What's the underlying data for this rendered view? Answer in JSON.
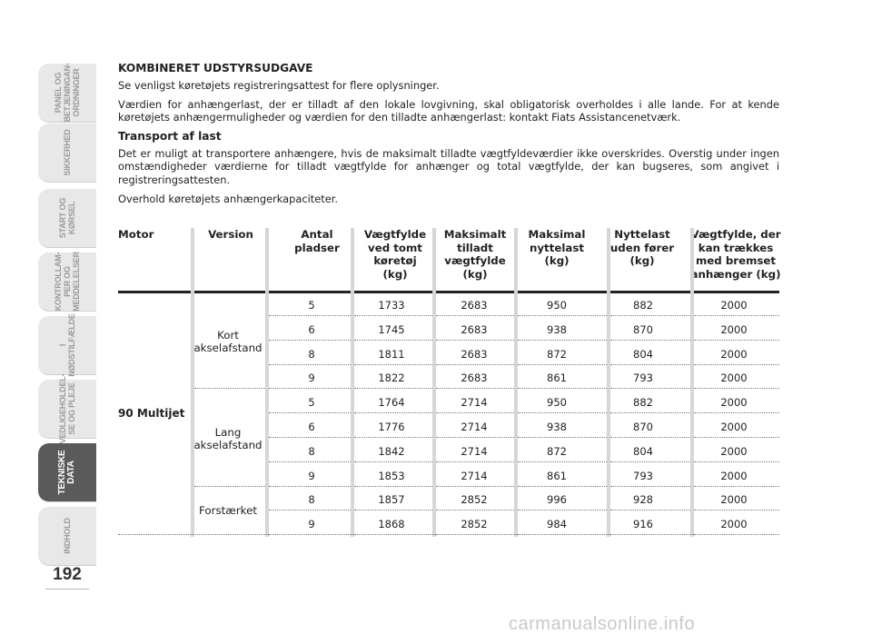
{
  "sidebar": {
    "tabs": [
      {
        "label": "PANEL OG\nBETJENINGAN-\nORDNINGER",
        "active": false
      },
      {
        "label": "SIKKERHED",
        "active": false
      },
      {
        "label": "START OG\nKØRSEL",
        "active": false
      },
      {
        "label": "KONTROLLAM-\nPER OG\nMEDDELELSER",
        "active": false
      },
      {
        "label": "I\nNØDSTILFÆLDE",
        "active": false
      },
      {
        "label": "VEDLIGEHOLDEL-\nSE OG PLEJE",
        "active": false
      },
      {
        "label": "TEKNISKE\nDATA",
        "active": true
      },
      {
        "label": "INDHOLD",
        "active": false
      }
    ],
    "page_number": "192"
  },
  "content": {
    "heading1": "KOMBINERET UDSTYRSUDGAVE",
    "p1": "Se venligst køretøjets registreringsattest for flere oplysninger.",
    "p2": "Værdien for anhængerlast, der er tilladt af den lokale lovgivning, skal obligatorisk overholdes i alle lande. For at kende køretøjets anhængermuligheder og værdien for den tilladte anhængerlast: kontakt Fiats Assistancenetværk.",
    "heading2": "Transport af last",
    "p3": "Det er muligt at transportere anhængere, hvis de maksimalt tilladte vægtfyldeværdier ikke overskrides. Overstig under ingen omstændigheder værdierne for tilladt vægtfylde for anhænger og total vægtfylde, der kan bugseres, som angivet i registreringsattesten.",
    "p4": "Overhold køretøjets anhængerkapaciteter."
  },
  "table": {
    "headers": [
      "Motor",
      "Version",
      "Antal\npladser",
      "Vægtfylde\nved tomt\nkøretøj\n(kg)",
      "Maksimalt\ntilladt\nvægtfylde\n(kg)",
      "Maksimal\nnyttelast\n(kg)",
      "Nyttelast\nuden fører\n(kg)",
      "Vægtfylde, der\nkan trækkes\nmed bremset\nanhænger (kg)"
    ],
    "motor": "90 Multijet",
    "versions": [
      "Kort\nakselafstand",
      "Lang\nakselafstand",
      "Forstærket"
    ],
    "rows": [
      [
        "5",
        "1733",
        "2683",
        "950",
        "882",
        "2000"
      ],
      [
        "6",
        "1745",
        "2683",
        "938",
        "870",
        "2000"
      ],
      [
        "8",
        "1811",
        "2683",
        "872",
        "804",
        "2000"
      ],
      [
        "9",
        "1822",
        "2683",
        "861",
        "793",
        "2000"
      ],
      [
        "5",
        "1764",
        "2714",
        "950",
        "882",
        "2000"
      ],
      [
        "6",
        "1776",
        "2714",
        "938",
        "870",
        "2000"
      ],
      [
        "8",
        "1842",
        "2714",
        "872",
        "804",
        "2000"
      ],
      [
        "9",
        "1853",
        "2714",
        "861",
        "793",
        "2000"
      ],
      [
        "8",
        "1857",
        "2852",
        "996",
        "928",
        "2000"
      ],
      [
        "9",
        "1868",
        "2852",
        "984",
        "916",
        "2000"
      ]
    ]
  },
  "watermark": "carmanualsonline.info"
}
